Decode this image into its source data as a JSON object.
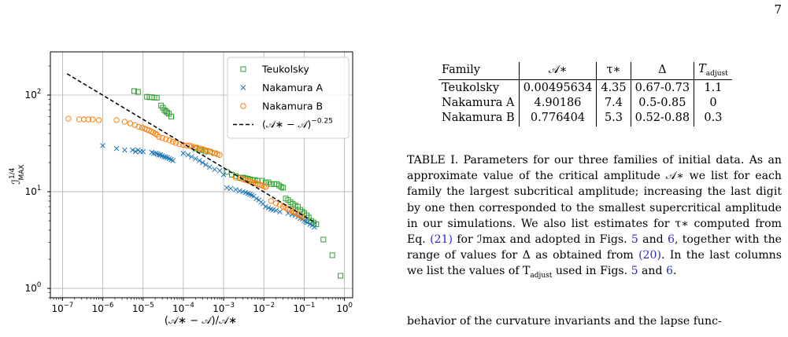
{
  "page_number": "7",
  "table": {
    "headers": [
      "Family",
      "𝒜∗",
      "τ∗",
      "Δ",
      "T"
    ],
    "header_sub": {
      "T": "adjust"
    },
    "rows": [
      [
        "Teukolsky",
        "0.00495634",
        "4.35",
        "0.67-0.73",
        "1.1"
      ],
      [
        "Nakamura A",
        "4.90186",
        "7.4",
        "0.5-0.85",
        "0"
      ],
      [
        "Nakamura B",
        "0.776404",
        "5.3",
        "0.52-0.88",
        "0.3"
      ]
    ]
  },
  "caption": {
    "text_1": "TABLE I. Parameters for our three families of initial data. As an approximate value of the critical amplitude 𝒜∗ we list for each family the largest subcritical amplitude; increasing the last digit by one then corresponded to the smallest supercritical amplitude in our simulations. We also list estimates for τ∗ computed from Eq. ",
    "ref_eq21": "(21)",
    "text_2": " for ℐmax and adopted in Figs. ",
    "ref_fig5a": "5",
    "text_3": " and ",
    "ref_fig6a": "6",
    "text_4": ", together with the range of values for Δ as obtained from ",
    "ref_eq20": "(20)",
    "text_5": ". In the last columns we list the values of T",
    "text_5_sub": "adjust",
    "text_6": " used in Figs. ",
    "ref_fig5b": "5",
    "text_7": " and ",
    "ref_fig6b": "6",
    "text_8": "."
  },
  "body_text": "behavior of the curvature invariants and the lapse func-",
  "chart_data": {
    "type": "scatter",
    "xscale": "log",
    "yscale": "log",
    "xlim": [
      5e-08,
      1.6
    ],
    "ylim": [
      0.8,
      280
    ],
    "xlabel": "(𝒜∗ − 𝒜)/𝒜∗",
    "ylabel": "ℐ^1/4 MAX",
    "xticks": [
      1e-07,
      1e-06,
      1e-05,
      0.0001,
      0.001,
      0.01,
      0.1,
      1
    ],
    "xtick_base": "10",
    "xtick_exps": [
      "−7",
      "−6",
      "−5",
      "−4",
      "−3",
      "−2",
      "−1",
      "0"
    ],
    "yticks": [
      1,
      10,
      100
    ],
    "ytick_exps": [
      "0",
      "1",
      "2"
    ],
    "grid": true,
    "legend_position": "top-right",
    "series": [
      {
        "name": "Teukolsky",
        "marker": "square",
        "color": "#2ca02c",
        "x": [
          6e-06,
          7.5e-06,
          1.25e-05,
          1.45e-05,
          1.65e-05,
          1.9e-05,
          2.2e-05,
          2.8e-05,
          3.1e-05,
          3.4e-05,
          3.7e-05,
          4e-05,
          4.4e-05,
          5e-05,
          0.0002,
          0.00025,
          0.0003,
          0.00036,
          0.00045,
          0.0006,
          0.0012,
          0.0016,
          0.002,
          0.0025,
          0.003,
          0.0035,
          0.004,
          0.0045,
          0.0052,
          0.006,
          0.007,
          0.009,
          0.011,
          0.013,
          0.015,
          0.018,
          0.021,
          0.024,
          0.027,
          0.03,
          0.035,
          0.04,
          0.046,
          0.052,
          0.06,
          0.07,
          0.08,
          0.09,
          0.1,
          0.115,
          0.13,
          0.15,
          0.17,
          0.2,
          0.3,
          0.5,
          0.8
        ],
        "y": [
          110,
          108,
          96,
          95,
          95,
          94,
          94,
          78,
          74,
          70,
          68,
          66,
          64,
          60,
          28,
          27,
          27,
          26,
          26,
          25,
          16,
          15,
          14.5,
          14,
          14,
          13.8,
          13.6,
          13.4,
          13.2,
          13.2,
          13,
          13,
          12.5,
          12.5,
          12,
          12,
          12,
          11.6,
          11.2,
          11,
          8.5,
          8.2,
          7.8,
          7.5,
          7.2,
          7,
          6.5,
          6.2,
          6,
          5.7,
          5.4,
          5,
          4.8,
          4.6,
          3.2,
          2.2,
          1.35
        ]
      },
      {
        "name": "Nakamura A",
        "marker": "x",
        "color": "#1f77b4",
        "x": [
          1e-06,
          2.2e-06,
          3.5e-06,
          5.5e-06,
          6.5e-06,
          7.5e-06,
          8.5e-06,
          1e-05,
          1.65e-05,
          1.85e-05,
          2.1e-05,
          2.3e-05,
          2.5e-05,
          2.7e-05,
          3e-05,
          3.3e-05,
          3.6e-05,
          4e-05,
          4.5e-05,
          5e-05,
          5.5e-05,
          0.0001,
          0.00013,
          0.00016,
          0.0002,
          0.00025,
          0.0003,
          0.00036,
          0.00045,
          0.0006,
          0.0008,
          0.001,
          0.0012,
          0.0015,
          0.002,
          0.0025,
          0.003,
          0.0035,
          0.004,
          0.0045,
          0.005,
          0.0056,
          0.0065,
          0.0075,
          0.0085,
          0.0095,
          0.011,
          0.013,
          0.015,
          0.017,
          0.02,
          0.025,
          0.04,
          0.05,
          0.06,
          0.07,
          0.08,
          0.09,
          0.1,
          0.11,
          0.12,
          0.14,
          0.16,
          0.18
        ],
        "y": [
          30,
          28,
          27,
          27,
          26,
          27,
          26,
          26,
          25.5,
          25,
          25,
          24.5,
          24,
          24,
          23.5,
          23,
          22.8,
          22.5,
          22,
          21.5,
          21,
          25,
          24,
          23,
          22,
          21,
          20,
          19,
          18,
          17,
          16.5,
          15,
          11,
          10.8,
          10.5,
          10.2,
          10,
          9.8,
          9.6,
          9.4,
          9.2,
          9,
          8.5,
          8.2,
          7.8,
          7.5,
          7,
          6.8,
          6.6,
          6.5,
          6.4,
          6.2,
          6,
          5.8,
          5.7,
          5.5,
          5.3,
          5.2,
          5,
          4.9,
          4.8,
          4.6,
          4.5,
          4.3
        ]
      },
      {
        "name": "Nakamura B",
        "marker": "circle",
        "color": "#ff7f0e",
        "x": [
          1.4e-07,
          2.6e-07,
          3.4e-07,
          4.4e-07,
          5.6e-07,
          8e-07,
          2.2e-06,
          3.5e-06,
          4.8e-06,
          6.2e-06,
          7.8e-06,
          9.5e-06,
          1.1e-05,
          1.25e-05,
          1.4e-05,
          1.6e-05,
          1.8e-05,
          2e-05,
          2.2e-05,
          2.5e-05,
          3e-05,
          3.7e-05,
          4.5e-05,
          5.5e-05,
          6.5e-05,
          8e-05,
          0.0001,
          0.00012,
          0.00014,
          0.00016,
          0.00019,
          0.00022,
          0.00026,
          0.0003,
          0.00035,
          0.0004,
          0.00046,
          0.00052,
          0.0006,
          0.0007,
          0.0008,
          0.002,
          0.0025,
          0.003,
          0.0035,
          0.004,
          0.0045,
          0.005,
          0.0056,
          0.0063,
          0.007,
          0.008,
          0.009,
          0.01,
          0.011,
          0.015,
          0.02,
          0.025,
          0.03,
          0.035,
          0.04,
          0.045,
          0.05,
          0.055,
          0.06,
          0.07,
          0.08,
          0.09
        ],
        "y": [
          57,
          56,
          56,
          56,
          56,
          55,
          55,
          53,
          51,
          49,
          47,
          46,
          45,
          44,
          43,
          42,
          41,
          40,
          39,
          37,
          36,
          35,
          34,
          33,
          32,
          31,
          30.5,
          30,
          30,
          29.5,
          29,
          28.5,
          28,
          27.5,
          27,
          26.5,
          26,
          25.5,
          25,
          24.5,
          24,
          14,
          13.8,
          13.5,
          13.2,
          13,
          12.8,
          12.6,
          12.4,
          12.2,
          12,
          11.8,
          11.6,
          11.4,
          11.2,
          8,
          7.6,
          7.3,
          7,
          6.8,
          6.6,
          6.5,
          6.3,
          6.2,
          6,
          5.8,
          5.6,
          5.4
        ]
      },
      {
        "name": "(𝒜∗ − 𝒜)^−0.25",
        "marker": "dashed-line",
        "color": "#000000",
        "x": [
          1.3e-07,
          0.2
        ],
        "y": [
          166,
          4.7
        ]
      }
    ]
  }
}
